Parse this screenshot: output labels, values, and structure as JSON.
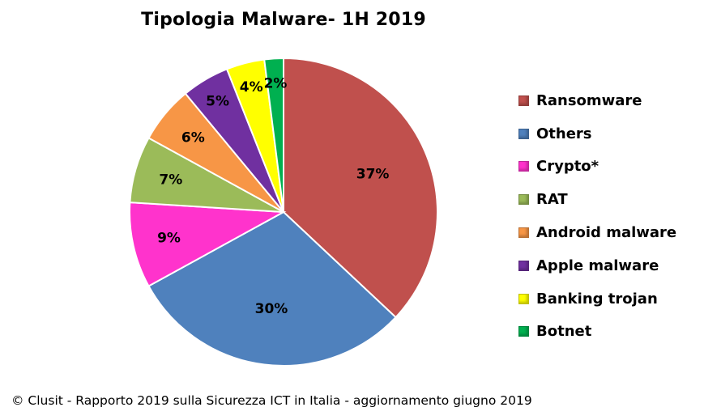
{
  "chart_data": {
    "type": "pie",
    "title": "Tipologia Malware-  1H 2019",
    "slices": [
      {
        "label": "Ransomware",
        "value": 37,
        "display": "37%",
        "color": "#c0504d"
      },
      {
        "label": "Others",
        "value": 30,
        "display": "30%",
        "color": "#4f81bd"
      },
      {
        "label": "Crypto*",
        "value": 9,
        "display": "9%",
        "color": "#ff33cc"
      },
      {
        "label": "RAT",
        "value": 7,
        "display": "7%",
        "color": "#9bbb59"
      },
      {
        "label": "Android malware",
        "value": 6,
        "display": "6%",
        "color": "#f79646"
      },
      {
        "label": "Apple malware",
        "value": 5,
        "display": "5%",
        "color": "#7030a0"
      },
      {
        "label": "Banking trojan",
        "value": 4,
        "display": "4%",
        "color": "#ffff00"
      },
      {
        "label": "Botnet",
        "value": 2,
        "display": "2%",
        "color": "#00b050"
      }
    ],
    "legend_position": "right"
  },
  "footer": "© Clusit - Rapporto 2019 sulla Sicurezza ICT in Italia - aggiornamento giugno 2019"
}
